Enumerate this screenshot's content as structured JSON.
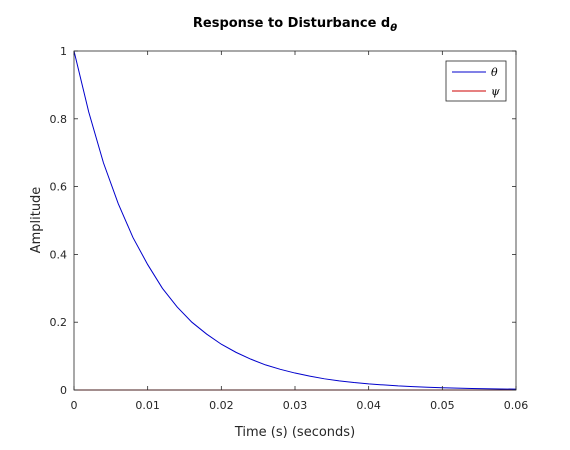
{
  "chart_data": {
    "type": "line",
    "title": "Response to Disturbance d",
    "title_subscript": "θ",
    "xlabel": "Time (s) (seconds)",
    "ylabel": "Amplitude",
    "xlim": [
      0,
      0.06
    ],
    "ylim": [
      0,
      1
    ],
    "xticks": [
      0,
      0.01,
      0.02,
      0.03,
      0.04,
      0.05,
      0.06
    ],
    "xtick_labels": [
      "0",
      "0.01",
      "0.02",
      "0.03",
      "0.04",
      "0.05",
      "0.06"
    ],
    "yticks": [
      0,
      0.2,
      0.4,
      0.6,
      0.8,
      1
    ],
    "ytick_labels": [
      "0",
      "0.2",
      "0.4",
      "0.6",
      "0.8",
      "1"
    ],
    "grid": false,
    "legend_position": "top-right",
    "series": [
      {
        "name": "θ",
        "color": "#0000cc",
        "x": [
          0,
          0.002,
          0.004,
          0.006,
          0.008,
          0.01,
          0.012,
          0.014,
          0.016,
          0.018,
          0.02,
          0.022,
          0.024,
          0.026,
          0.028,
          0.03,
          0.032,
          0.034,
          0.036,
          0.038,
          0.04,
          0.042,
          0.044,
          0.046,
          0.048,
          0.05,
          0.052,
          0.054,
          0.056,
          0.058,
          0.06
        ],
        "y": [
          1.0,
          0.82,
          0.67,
          0.55,
          0.45,
          0.37,
          0.3,
          0.245,
          0.2,
          0.165,
          0.135,
          0.111,
          0.091,
          0.074,
          0.061,
          0.05,
          0.041,
          0.033,
          0.027,
          0.022,
          0.018,
          0.015,
          0.012,
          0.01,
          0.008,
          0.0067,
          0.0055,
          0.0045,
          0.0037,
          0.003,
          0.0025
        ]
      },
      {
        "name": "ψ",
        "color": "#cc0000",
        "x": [
          0,
          0.06
        ],
        "y": [
          0,
          0
        ]
      }
    ]
  }
}
